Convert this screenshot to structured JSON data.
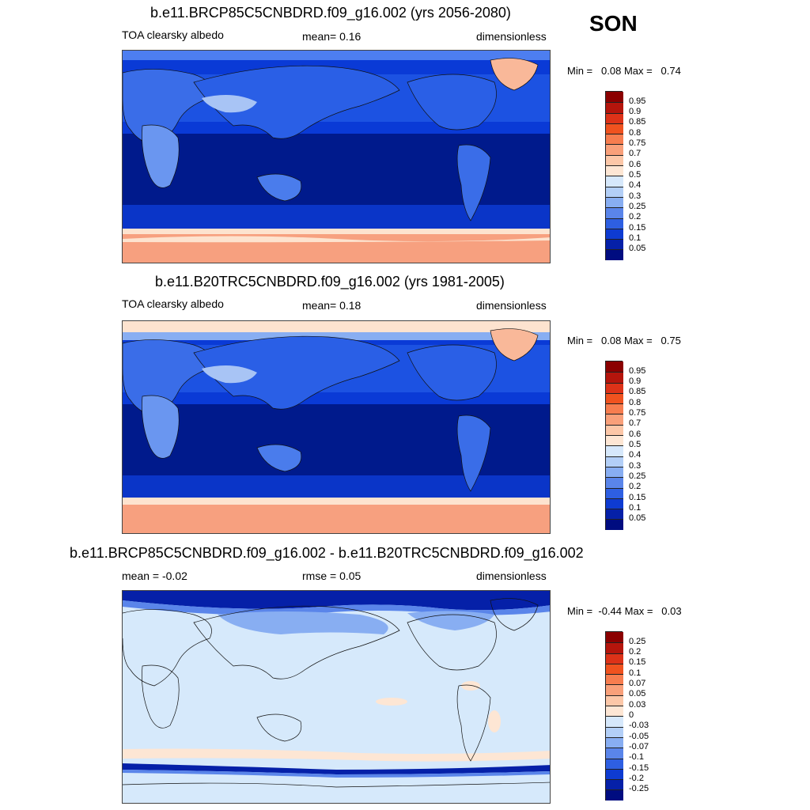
{
  "season": "SON",
  "colors": {
    "ocean_low": "#001a8c",
    "ocean_mid": "#0a3ad6",
    "ocean_mid2": "#1f5ae8",
    "land_high": "#93b7f5",
    "ice": "#f7a07f",
    "ice_light": "#fde3cf",
    "diff_bg": "#d6e9fb"
  },
  "panels": [
    {
      "title": "b.e11.BRCP85C5CNBDRD.f09_g16.002 (yrs 2056-2080)",
      "left": "TOA clearsky albedo",
      "center": "mean=   0.16",
      "right": "dimensionless",
      "min_label": "Min =",
      "min": "0.08",
      "max_label": "Max =",
      "max": "0.74",
      "colorbar": {
        "ticks": [
          "0.95",
          "0.9",
          "0.85",
          "0.8",
          "0.75",
          "0.7",
          "0.6",
          "0.5",
          "0.4",
          "0.3",
          "0.25",
          "0.2",
          "0.15",
          "0.1",
          "0.05"
        ],
        "colors": [
          "#8b0000",
          "#b5150c",
          "#dd3218",
          "#f0521f",
          "#f77d4f",
          "#f9a07a",
          "#fcc7a8",
          "#fde6d4",
          "#d6e8fb",
          "#b3cff7",
          "#88aef2",
          "#5a85ea",
          "#2e5fe2",
          "#0e3bd1",
          "#0520a8",
          "#000c80"
        ]
      }
    },
    {
      "title": "b.e11.B20TRC5CNBDRD.f09_g16.002 (yrs 1981-2005)",
      "left": "TOA clearsky albedo",
      "center": "mean=   0.18",
      "right": "dimensionless",
      "min_label": "Min =",
      "min": "0.08",
      "max_label": "Max =",
      "max": "0.75",
      "colorbar": {
        "ticks": [
          "0.95",
          "0.9",
          "0.85",
          "0.8",
          "0.75",
          "0.7",
          "0.6",
          "0.5",
          "0.4",
          "0.3",
          "0.25",
          "0.2",
          "0.15",
          "0.1",
          "0.05"
        ],
        "colors": [
          "#8b0000",
          "#b5150c",
          "#dd3218",
          "#f0521f",
          "#f77d4f",
          "#f9a07a",
          "#fcc7a8",
          "#fde6d4",
          "#d6e8fb",
          "#b3cff7",
          "#88aef2",
          "#5a85ea",
          "#2e5fe2",
          "#0e3bd1",
          "#0520a8",
          "#000c80"
        ]
      }
    },
    {
      "title": "b.e11.BRCP85C5CNBDRD.f09_g16.002 - b.e11.B20TRC5CNBDRD.f09_g16.002",
      "left": "mean =  -0.02",
      "center": "rmse =   0.05",
      "right": "dimensionless",
      "min_label": "Min =",
      "min": "-0.44",
      "max_label": "Max =",
      "max": "0.03",
      "colorbar": {
        "ticks": [
          "0.25",
          "0.2",
          "0.15",
          "0.1",
          "0.07",
          "0.05",
          "0.03",
          "0",
          "-0.03",
          "-0.05",
          "-0.07",
          "-0.1",
          "-0.15",
          "-0.2",
          "-0.25"
        ],
        "colors": [
          "#8b0000",
          "#b5150c",
          "#dd3218",
          "#f0521f",
          "#f77d4f",
          "#f9a07a",
          "#fcc7a8",
          "#fde6d4",
          "#d6e8fb",
          "#b3cff7",
          "#88aef2",
          "#5a85ea",
          "#2e5fe2",
          "#0e3bd1",
          "#0520a8",
          "#000c80"
        ]
      }
    }
  ]
}
